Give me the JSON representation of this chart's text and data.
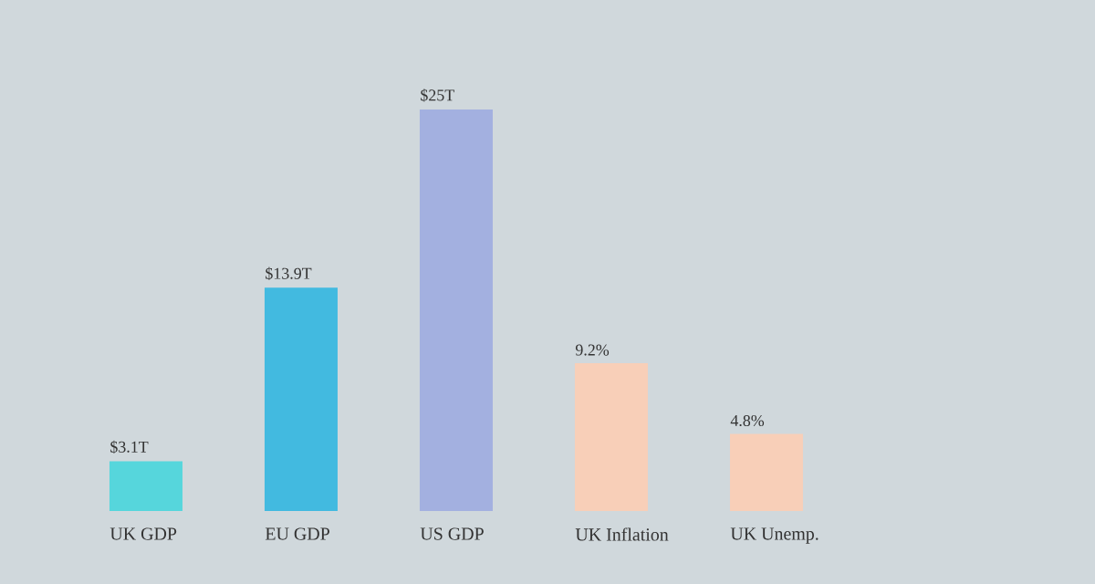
{
  "chart_data": {
    "type": "bar",
    "categories": [
      "UK GDP",
      "EU GDP",
      "US GDP",
      "UK Inflation",
      "UK Unemp."
    ],
    "values": [
      3.1,
      13.9,
      25,
      9.2,
      4.8
    ],
    "value_labels": [
      "$3.1T",
      "$13.9T",
      "$25T",
      "9.2%",
      "4.8%"
    ],
    "colors": [
      "#56d6dc",
      "#42bae0",
      "#a3b0e0",
      "#f8cfb8",
      "#f8cfb8"
    ]
  }
}
